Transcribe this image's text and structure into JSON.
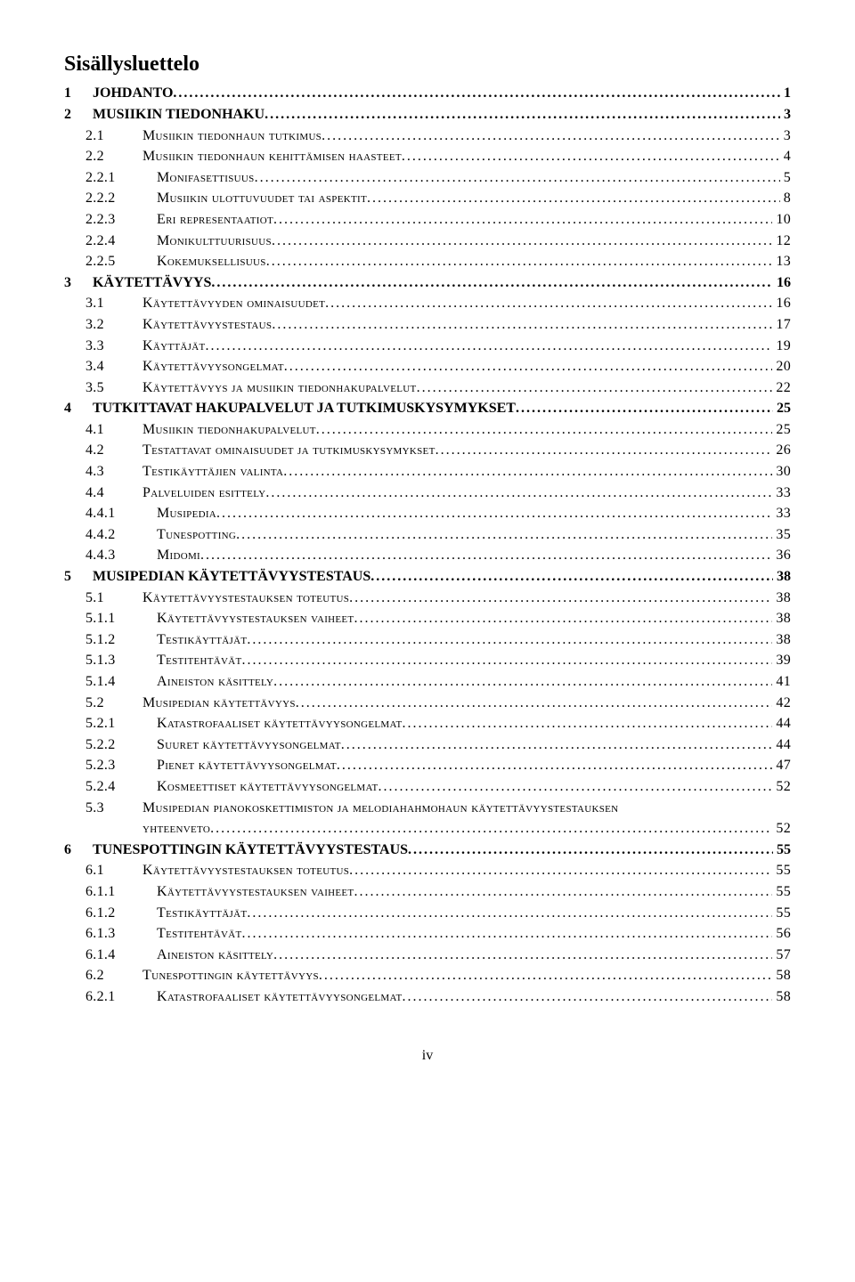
{
  "title": "Sisällysluettelo",
  "page_number": "iv",
  "font_family": "Times New Roman",
  "font_size_body": 16,
  "font_size_title": 24,
  "color_text": "#000000",
  "color_background": "#ffffff",
  "toc": [
    {
      "level": 1,
      "num": "1",
      "label": "JOHDANTO",
      "page": "1"
    },
    {
      "level": 1,
      "num": "2",
      "label": "MUSIIKIN TIEDONHAKU",
      "page": "3"
    },
    {
      "level": 2,
      "num": "2.1",
      "label": "Musiikin tiedonhaun tutkimus",
      "page": "3"
    },
    {
      "level": 2,
      "num": "2.2",
      "label": "Musiikin tiedonhaun kehittämisen haasteet",
      "page": "4"
    },
    {
      "level": 3,
      "num": "2.2.1",
      "label": "Monifasettisuus",
      "page": "5"
    },
    {
      "level": 3,
      "num": "2.2.2",
      "label": "Musiikin ulottuvuudet tai aspektit",
      "page": "8"
    },
    {
      "level": 3,
      "num": "2.2.3",
      "label": "Eri representaatiot",
      "page": "10"
    },
    {
      "level": 3,
      "num": "2.2.4",
      "label": "Monikulttuurisuus",
      "page": "12"
    },
    {
      "level": 3,
      "num": "2.2.5",
      "label": "Kokemuksellisuus",
      "page": "13"
    },
    {
      "level": 1,
      "num": "3",
      "label": "KÄYTETTÄVYYS",
      "page": "16"
    },
    {
      "level": 2,
      "num": "3.1",
      "label": "Käytettävyyden ominaisuudet",
      "page": "16"
    },
    {
      "level": 2,
      "num": "3.2",
      "label": "Käytettävyystestaus",
      "page": "17"
    },
    {
      "level": 2,
      "num": "3.3",
      "label": "Käyttäjät",
      "page": "19"
    },
    {
      "level": 2,
      "num": "3.4",
      "label": "Käytettävyysongelmat",
      "page": "20"
    },
    {
      "level": 2,
      "num": "3.5",
      "label": "Käytettävyys ja musiikin tiedonhakupalvelut",
      "page": "22"
    },
    {
      "level": 1,
      "num": "4",
      "label": "TUTKITTAVAT HAKUPALVELUT JA TUTKIMUSKYSYMYKSET",
      "page": "25"
    },
    {
      "level": 2,
      "num": "4.1",
      "label": "Musiikin tiedonhakupalvelut",
      "page": "25"
    },
    {
      "level": 2,
      "num": "4.2",
      "label": "Testattavat ominaisuudet ja tutkimuskysymykset",
      "page": "26"
    },
    {
      "level": 2,
      "num": "4.3",
      "label": "Testikäyttäjien valinta",
      "page": "30"
    },
    {
      "level": 2,
      "num": "4.4",
      "label": "Palveluiden esittely",
      "page": "33"
    },
    {
      "level": 3,
      "num": "4.4.1",
      "label": "Musipedia",
      "page": "33"
    },
    {
      "level": 3,
      "num": "4.4.2",
      "label": "Tunespotting",
      "page": "35"
    },
    {
      "level": 3,
      "num": "4.4.3",
      "label": "Midomi",
      "page": "36"
    },
    {
      "level": 1,
      "num": "5",
      "label": "MUSIPEDIAN KÄYTETTÄVYYSTESTAUS",
      "page": "38"
    },
    {
      "level": 2,
      "num": "5.1",
      "label": "Käytettävyystestauksen toteutus",
      "page": "38"
    },
    {
      "level": 3,
      "num": "5.1.1",
      "label": "Käytettävyystestauksen vaiheet",
      "page": "38"
    },
    {
      "level": 3,
      "num": "5.1.2",
      "label": "Testikäyttäjät",
      "page": "38"
    },
    {
      "level": 3,
      "num": "5.1.3",
      "label": "Testitehtävät",
      "page": "39"
    },
    {
      "level": 3,
      "num": "5.1.4",
      "label": "Aineiston käsittely",
      "page": "41"
    },
    {
      "level": 2,
      "num": "5.2",
      "label": "Musipedian käytettävyys",
      "page": "42"
    },
    {
      "level": 3,
      "num": "5.2.1",
      "label": "Katastrofaaliset käytettävyysongelmat",
      "page": "44"
    },
    {
      "level": 3,
      "num": "5.2.2",
      "label": "Suuret käytettävyysongelmat",
      "page": "44"
    },
    {
      "level": 3,
      "num": "5.2.3",
      "label": "Pienet käytettävyysongelmat",
      "page": "47"
    },
    {
      "level": 3,
      "num": "5.2.4",
      "label": "Kosmeettiset käytettävyysongelmat",
      "page": "52"
    },
    {
      "level": 2,
      "num": "5.3",
      "label": "Musipedian pianokoskettimiston ja melodiahahmohaun käytettävyystestauksen yhteenveto",
      "page": "52",
      "wrap": true
    },
    {
      "level": 1,
      "num": "6",
      "label": "TUNESPOTTINGIN KÄYTETTÄVYYSTESTAUS",
      "page": "55"
    },
    {
      "level": 2,
      "num": "6.1",
      "label": "Käytettävyystestauksen toteutus",
      "page": "55"
    },
    {
      "level": 3,
      "num": "6.1.1",
      "label": "Käytettävyystestauksen vaiheet",
      "page": "55"
    },
    {
      "level": 3,
      "num": "6.1.2",
      "label": "Testikäyttäjät",
      "page": "55"
    },
    {
      "level": 3,
      "num": "6.1.3",
      "label": "Testitehtävät",
      "page": "56"
    },
    {
      "level": 3,
      "num": "6.1.4",
      "label": "Aineiston käsittely",
      "page": "57"
    },
    {
      "level": 2,
      "num": "6.2",
      "label": "Tunespottingin käytettävyys",
      "page": "58"
    },
    {
      "level": 3,
      "num": "6.2.1",
      "label": "Katastrofaaliset käytettävyysongelmat",
      "page": "58"
    }
  ]
}
